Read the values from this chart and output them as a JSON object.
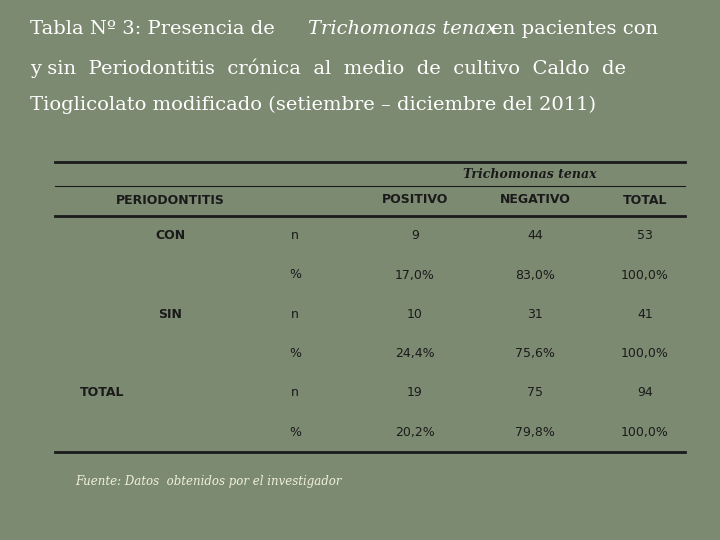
{
  "title_line1_pre": "Tabla Nº 3: Presencia de ",
  "title_line1_italic": "Trichomonas tenax",
  "title_line1_post": " en pacientes con",
  "title_line2": "y sin  Periodontitis  crónica  al  medio  de  cultivo  Caldo  de",
  "title_line3": "Tioglicolato modificado (setiembre – diciembre del 2011)",
  "bg_color": "#7d8a72",
  "header_trichomonas": "Trichomonas tenax",
  "header_perio": "PERIODONTITIS",
  "header_pos": "POSITIVO",
  "header_neg": "NEGATIVO",
  "header_total": "TOTAL",
  "rows": [
    [
      "CON",
      "n",
      "9",
      "44",
      "53"
    ],
    [
      "",
      "%",
      "17,0%",
      "83,0%",
      "100,0%"
    ],
    [
      "SIN",
      "n",
      "10",
      "31",
      "41"
    ],
    [
      "",
      "%",
      "24,4%",
      "75,6%",
      "100,0%"
    ],
    [
      "TOTAL",
      "n",
      "19",
      "75",
      "94"
    ],
    [
      "",
      "%",
      "20,2%",
      "79,8%",
      "100,0%"
    ]
  ],
  "footer": "Fuente: Datos  obtenidos por el investigador",
  "title_color": "#ffffff",
  "table_text_color": "#1a1a1a",
  "footer_color": "#f0f0d8",
  "line_color": "#1a1a1a",
  "title_fontsize": 14,
  "table_fontsize": 9
}
